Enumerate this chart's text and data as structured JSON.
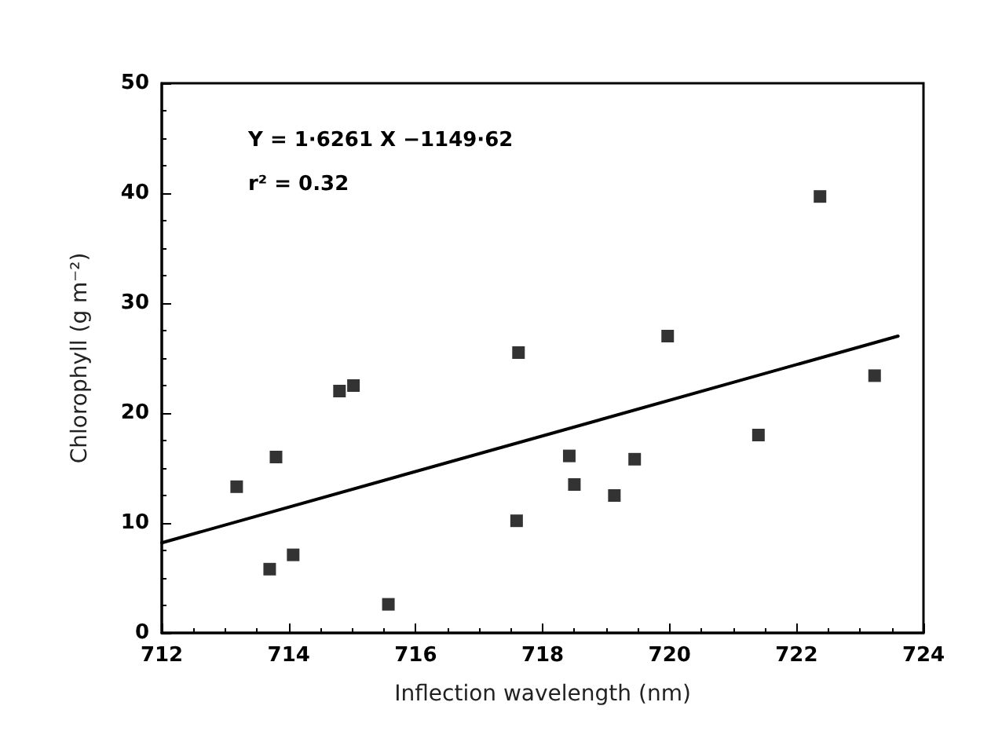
{
  "chart_data": {
    "type": "scatter",
    "xlabel": "Inflection wavelength (nm)",
    "ylabel": "Chlorophyll (g m⁻²)",
    "annotations": [
      "Y = 1·6261 X −1149·62",
      "r² = 0.32"
    ],
    "xlim": [
      712,
      724
    ],
    "xticks": [
      712,
      714,
      716,
      718,
      720,
      722,
      724
    ],
    "ylim": [
      0,
      50
    ],
    "yticks": [
      0,
      10,
      20,
      30,
      40,
      50
    ],
    "grid": false,
    "marker": "square",
    "series": [
      {
        "color": "#000000",
        "x": [
          713.18,
          713.8,
          713.7,
          714.07,
          714.8,
          715.02,
          715.57,
          717.62,
          717.59,
          718.42,
          718.5,
          719.13,
          719.45,
          719.97,
          721.4,
          722.37,
          723.23
        ],
        "values": [
          13.3,
          16,
          5.8,
          7.1,
          22,
          22.5,
          2.6,
          25.5,
          10.2,
          16.1,
          13.5,
          12.5,
          15.8,
          27,
          18,
          39.7,
          23.4
        ]
      },
      {
        "type": "line",
        "color": "#000000",
        "x": [
          712,
          723.6
        ],
        "values": [
          8.2,
          27.0
        ],
        "marker": "none",
        "line_style": "solid"
      }
    ]
  }
}
